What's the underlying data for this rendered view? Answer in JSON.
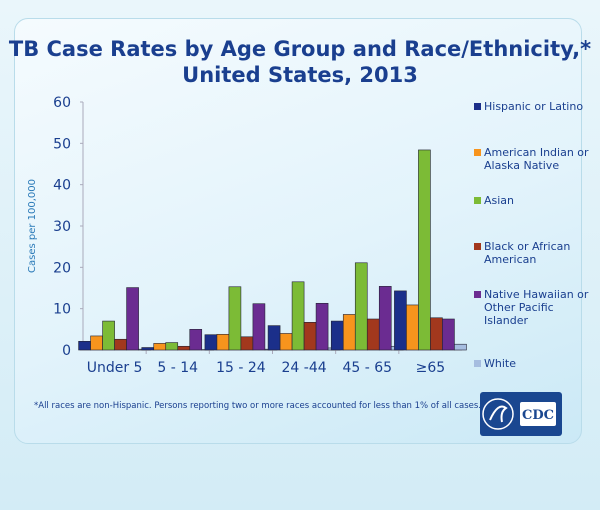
{
  "chart_data": {
    "type": "bar",
    "title": "TB Case Rates by Age Group and Race/Ethnicity,* United States, 2013",
    "title_lines": [
      "TB Case Rates by Age Group and Race/Ethnicity,*",
      "United States, 2013"
    ],
    "ylabel": "Cases per 100,000",
    "xlabel": "",
    "ylim": [
      0,
      60
    ],
    "yticks": [
      "0",
      "10",
      "20",
      "30",
      "40",
      "50",
      "60"
    ],
    "categories": [
      "Under 5",
      "5 - 14",
      "15  - 24",
      "24  -44",
      "45 - 65",
      "≥65"
    ],
    "legend_position": "right",
    "series": [
      {
        "name": "Hispanic or Latino",
        "color": "#1b2f8a",
        "values": [
          2.1,
          0.6,
          3.7,
          5.9,
          7.0,
          14.3
        ]
      },
      {
        "name": "American Indian or Alaska Native",
        "color": "#f7941d",
        "values": [
          3.4,
          1.6,
          3.8,
          4.0,
          8.6,
          10.9
        ]
      },
      {
        "name": "Asian",
        "color": "#7cbb36",
        "values": [
          7.0,
          1.8,
          15.3,
          16.5,
          21.1,
          48.4
        ]
      },
      {
        "name": "Black or African American",
        "color": "#a2381d",
        "values": [
          2.6,
          0.9,
          3.2,
          6.7,
          7.5,
          7.8
        ]
      },
      {
        "name": "Native Hawaiian or Other Pacific Islander",
        "color": "#6b2c91",
        "values": [
          15.1,
          5.0,
          11.2,
          11.3,
          15.4,
          7.5
        ]
      },
      {
        "name": "White",
        "color": "#a6bde0",
        "values": [
          0.2,
          0.1,
          0.2,
          0.5,
          0.9,
          1.4
        ]
      }
    ],
    "footnote": "*All races are non-Hispanic. Persons reporting two or more races accounted for less than 1% of all cases."
  },
  "logo": {
    "text": "CDC"
  }
}
